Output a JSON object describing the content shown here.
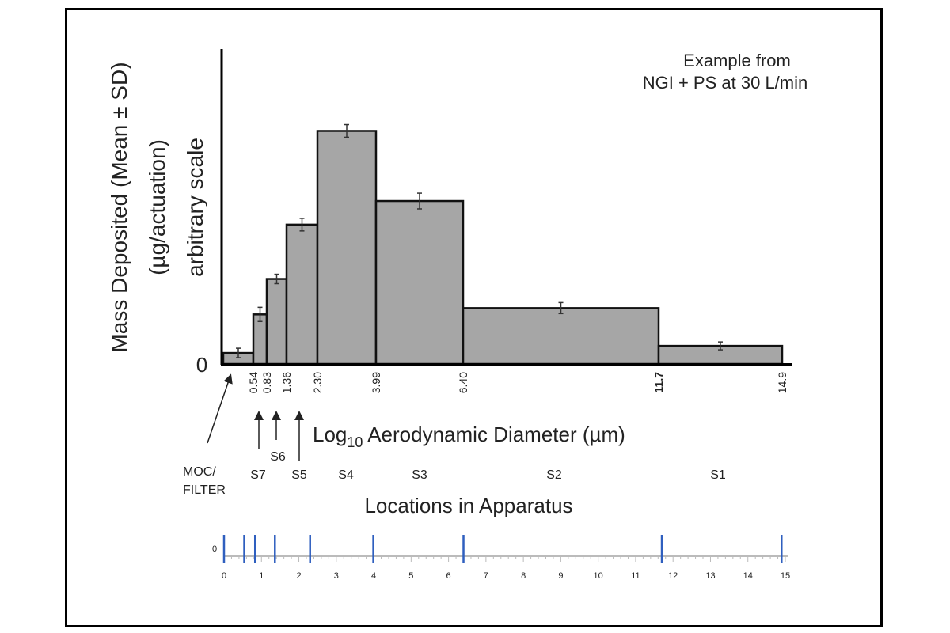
{
  "chart_data": {
    "type": "bar",
    "annotation": [
      "Example from",
      "NGI + PS at 30 L/min"
    ],
    "ylabel": [
      "Mass Deposited (Mean ± SD)",
      "(µg/actuation)",
      "arbitrary scale"
    ],
    "y_tick_zero": "0",
    "ylim": [
      0,
      400
    ],
    "xlabel": {
      "prefix": "Log",
      "sub": "10",
      "rest": " Aerodynamic Diameter (µm)"
    },
    "bin_edges": [
      0,
      0.54,
      0.83,
      1.36,
      2.3,
      3.99,
      6.4,
      11.7,
      14.9
    ],
    "bin_edge_labels": [
      "0.54",
      "0.83",
      "1.36",
      "2.30",
      "3.99",
      "6.40",
      "11.7",
      "14.9"
    ],
    "categories": [
      "MOC/FILTER",
      "S7",
      "S6",
      "S5",
      "S4",
      "S3",
      "S2",
      "S1"
    ],
    "values": [
      14,
      63,
      108,
      177,
      296,
      207,
      71,
      23
    ],
    "errors": [
      6,
      9,
      6,
      8,
      8,
      10,
      7,
      5
    ],
    "bar_color": "#a6a6a6",
    "location_labels": {
      "moc_line1": "MOC/",
      "moc_line2": "FILTER",
      "s7": "S7",
      "s6": "S6",
      "s5": "S5",
      "s4": "S4",
      "s3": "S3",
      "s2": "S2",
      "s1": "S1"
    },
    "locations_title": "Locations in Apparatus",
    "ruler": {
      "xlim": [
        0,
        15
      ],
      "tick_labels": [
        "0",
        "1",
        "2",
        "3",
        "4",
        "5",
        "6",
        "7",
        "8",
        "9",
        "10",
        "11",
        "12",
        "13",
        "14",
        "15"
      ],
      "y_label": "0",
      "markers": [
        0,
        0.54,
        0.83,
        1.36,
        2.3,
        3.99,
        6.4,
        11.7,
        14.9
      ],
      "marker_color": "#2f5fbf"
    }
  }
}
